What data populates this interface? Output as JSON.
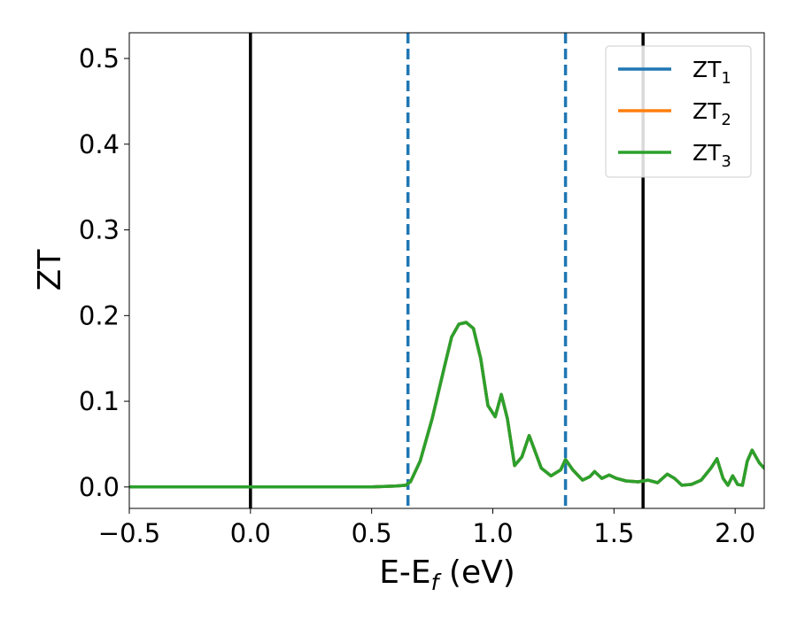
{
  "chart_data": {
    "type": "line",
    "xlabel": "E-E",
    "xlabel_sub": "f",
    "xlabel_unit": " (eV)",
    "ylabel": "ZT",
    "xlim": [
      -0.5,
      2.12
    ],
    "ylim": [
      -0.025,
      0.53
    ],
    "xticks": [
      -0.5,
      0.0,
      0.5,
      1.0,
      1.5,
      2.0
    ],
    "xtick_labels": [
      "−0.5",
      "0.0",
      "0.5",
      "1.0",
      "1.5",
      "2.0"
    ],
    "yticks": [
      0.0,
      0.1,
      0.2,
      0.3,
      0.4,
      0.5
    ],
    "ytick_labels": [
      "0.0",
      "0.1",
      "0.2",
      "0.3",
      "0.4",
      "0.5"
    ],
    "grid": false,
    "legend_position": "top-right",
    "vlines": [
      {
        "x": 0.0,
        "style": "solid",
        "color": "#000000"
      },
      {
        "x": 1.62,
        "style": "solid",
        "color": "#000000"
      },
      {
        "x": 0.65,
        "style": "dashed",
        "color": "#1f77b4"
      },
      {
        "x": 1.3,
        "style": "dashed",
        "color": "#1f77b4"
      }
    ],
    "series": [
      {
        "name": "ZT",
        "sub": "1",
        "color": "#1f77b4",
        "x": [
          -0.5,
          0.0,
          0.5,
          0.6,
          0.64,
          0.66,
          0.7,
          0.75,
          0.8,
          0.83,
          0.86,
          0.89,
          0.92,
          0.95,
          0.98,
          1.01,
          1.035,
          1.06,
          1.09,
          1.12,
          1.15,
          1.17,
          1.2,
          1.24,
          1.28,
          1.3,
          1.33,
          1.37,
          1.4,
          1.42,
          1.45,
          1.48,
          1.51,
          1.55,
          1.6,
          1.64,
          1.68,
          1.72,
          1.75,
          1.78,
          1.82,
          1.86,
          1.9,
          1.925,
          1.95,
          1.97,
          1.99,
          2.01,
          2.03,
          2.05,
          2.07,
          2.1,
          2.12
        ],
        "y": [
          0.0,
          0.0,
          0.0,
          0.001,
          0.002,
          0.006,
          0.03,
          0.08,
          0.14,
          0.175,
          0.19,
          0.192,
          0.185,
          0.15,
          0.095,
          0.082,
          0.108,
          0.08,
          0.025,
          0.035,
          0.06,
          0.045,
          0.022,
          0.013,
          0.02,
          0.032,
          0.02,
          0.008,
          0.012,
          0.018,
          0.01,
          0.014,
          0.01,
          0.007,
          0.006,
          0.008,
          0.005,
          0.015,
          0.01,
          0.002,
          0.003,
          0.008,
          0.022,
          0.033,
          0.01,
          0.002,
          0.013,
          0.003,
          0.002,
          0.03,
          0.043,
          0.028,
          0.022
        ]
      },
      {
        "name": "ZT",
        "sub": "2",
        "color": "#ff7f0e",
        "x": [
          -0.5,
          0.0,
          0.5,
          0.6,
          0.64,
          0.66,
          0.7,
          0.75,
          0.8,
          0.83,
          0.86,
          0.89,
          0.92,
          0.95,
          0.98,
          1.01,
          1.035,
          1.06,
          1.09,
          1.12,
          1.15,
          1.17,
          1.2,
          1.24,
          1.28,
          1.3,
          1.33,
          1.37,
          1.4,
          1.42,
          1.45,
          1.48,
          1.51,
          1.55,
          1.6,
          1.64,
          1.68,
          1.72,
          1.75,
          1.78,
          1.82,
          1.86,
          1.9,
          1.925,
          1.95,
          1.97,
          1.99,
          2.01,
          2.03,
          2.05,
          2.07,
          2.1,
          2.12
        ],
        "y": [
          0.0,
          0.0,
          0.0,
          0.001,
          0.002,
          0.006,
          0.03,
          0.08,
          0.14,
          0.175,
          0.19,
          0.192,
          0.185,
          0.15,
          0.095,
          0.082,
          0.108,
          0.08,
          0.025,
          0.035,
          0.06,
          0.045,
          0.022,
          0.013,
          0.02,
          0.032,
          0.02,
          0.008,
          0.012,
          0.018,
          0.01,
          0.014,
          0.01,
          0.007,
          0.006,
          0.008,
          0.005,
          0.015,
          0.01,
          0.002,
          0.003,
          0.008,
          0.022,
          0.033,
          0.01,
          0.002,
          0.013,
          0.003,
          0.002,
          0.03,
          0.043,
          0.028,
          0.022
        ]
      },
      {
        "name": "ZT",
        "sub": "3",
        "color": "#2ca02c",
        "x": [
          -0.5,
          0.0,
          0.5,
          0.6,
          0.64,
          0.66,
          0.7,
          0.75,
          0.8,
          0.83,
          0.86,
          0.89,
          0.92,
          0.95,
          0.98,
          1.01,
          1.035,
          1.06,
          1.09,
          1.12,
          1.15,
          1.17,
          1.2,
          1.24,
          1.28,
          1.3,
          1.33,
          1.37,
          1.4,
          1.42,
          1.45,
          1.48,
          1.51,
          1.55,
          1.6,
          1.64,
          1.68,
          1.72,
          1.75,
          1.78,
          1.82,
          1.86,
          1.9,
          1.925,
          1.95,
          1.97,
          1.99,
          2.01,
          2.03,
          2.05,
          2.07,
          2.1,
          2.12
        ],
        "y": [
          0.0,
          0.0,
          0.0,
          0.001,
          0.002,
          0.006,
          0.03,
          0.08,
          0.14,
          0.175,
          0.19,
          0.192,
          0.185,
          0.15,
          0.095,
          0.082,
          0.108,
          0.08,
          0.025,
          0.035,
          0.06,
          0.045,
          0.022,
          0.013,
          0.02,
          0.032,
          0.02,
          0.008,
          0.012,
          0.018,
          0.01,
          0.014,
          0.01,
          0.007,
          0.006,
          0.008,
          0.005,
          0.015,
          0.01,
          0.002,
          0.003,
          0.008,
          0.022,
          0.033,
          0.01,
          0.002,
          0.013,
          0.003,
          0.002,
          0.03,
          0.043,
          0.028,
          0.022
        ]
      }
    ]
  }
}
